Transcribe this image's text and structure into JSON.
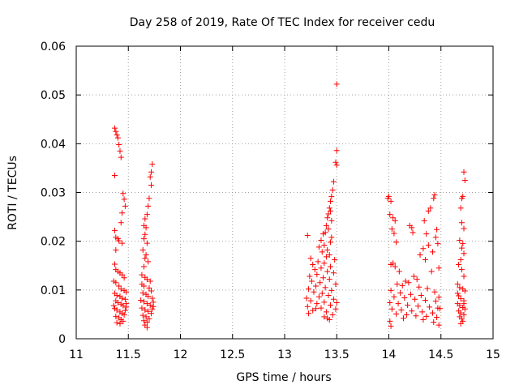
{
  "chart_data": {
    "type": "scatter",
    "title": "Day 258 of 2019, Rate Of TEC Index for receiver cedu",
    "xlabel": "GPS time / hours",
    "ylabel": "ROTI / TECUs",
    "xlim": [
      11,
      15
    ],
    "ylim": [
      0,
      0.06
    ],
    "x_ticks": [
      11,
      11.5,
      12,
      12.5,
      13,
      13.5,
      14,
      14.5,
      15
    ],
    "x_tick_labels": [
      "11",
      "11.5",
      "12",
      "12.5",
      "13",
      "13.5",
      "14",
      "14.5",
      "15"
    ],
    "y_ticks": [
      0,
      0.01,
      0.02,
      0.03,
      0.04,
      0.05,
      0.06
    ],
    "y_tick_labels": [
      "0",
      "0.01",
      "0.02",
      "0.03",
      "0.04",
      "0.05",
      "0.06"
    ],
    "grid": true,
    "marker": "+",
    "series": [
      {
        "name": "ROTI",
        "color": "#ff0000",
        "points": [
          [
            11.37,
            0.0432
          ],
          [
            11.38,
            0.0425
          ],
          [
            11.39,
            0.0418
          ],
          [
            11.4,
            0.0412
          ],
          [
            11.41,
            0.0398
          ],
          [
            11.42,
            0.0385
          ],
          [
            11.43,
            0.0372
          ],
          [
            11.37,
            0.0335
          ],
          [
            11.45,
            0.0298
          ],
          [
            11.46,
            0.0286
          ],
          [
            11.47,
            0.0272
          ],
          [
            11.44,
            0.0258
          ],
          [
            11.43,
            0.0238
          ],
          [
            11.37,
            0.0222
          ],
          [
            11.38,
            0.0208
          ],
          [
            11.4,
            0.0205
          ],
          [
            11.41,
            0.0201
          ],
          [
            11.44,
            0.0196
          ],
          [
            11.38,
            0.0182
          ],
          [
            11.37,
            0.0153
          ],
          [
            11.38,
            0.0142
          ],
          [
            11.4,
            0.0138
          ],
          [
            11.42,
            0.0135
          ],
          [
            11.44,
            0.0131
          ],
          [
            11.46,
            0.0125
          ],
          [
            11.36,
            0.0118
          ],
          [
            11.38,
            0.0115
          ],
          [
            11.41,
            0.0108
          ],
          [
            11.43,
            0.0102
          ],
          [
            11.46,
            0.0099
          ],
          [
            11.48,
            0.0096
          ],
          [
            11.37,
            0.0093
          ],
          [
            11.39,
            0.0089
          ],
          [
            11.42,
            0.0087
          ],
          [
            11.44,
            0.0083
          ],
          [
            11.47,
            0.0081
          ],
          [
            11.38,
            0.0078
          ],
          [
            11.4,
            0.0074
          ],
          [
            11.43,
            0.0071
          ],
          [
            11.45,
            0.0068
          ],
          [
            11.48,
            0.0065
          ],
          [
            11.37,
            0.0062
          ],
          [
            11.39,
            0.0059
          ],
          [
            11.42,
            0.0055
          ],
          [
            11.44,
            0.0052
          ],
          [
            11.46,
            0.0049
          ],
          [
            11.38,
            0.0046
          ],
          [
            11.41,
            0.0043
          ],
          [
            11.43,
            0.0039
          ],
          [
            11.45,
            0.0036
          ],
          [
            11.39,
            0.0033
          ],
          [
            11.42,
            0.0031
          ],
          [
            11.47,
            0.0058
          ],
          [
            11.48,
            0.0072
          ],
          [
            11.36,
            0.0068
          ],
          [
            11.73,
            0.0358
          ],
          [
            11.72,
            0.0342
          ],
          [
            11.71,
            0.0332
          ],
          [
            11.72,
            0.0315
          ],
          [
            11.7,
            0.0288
          ],
          [
            11.69,
            0.0272
          ],
          [
            11.68,
            0.0255
          ],
          [
            11.66,
            0.0246
          ],
          [
            11.65,
            0.0232
          ],
          [
            11.67,
            0.0228
          ],
          [
            11.66,
            0.0214
          ],
          [
            11.65,
            0.0205
          ],
          [
            11.68,
            0.0196
          ],
          [
            11.64,
            0.0182
          ],
          [
            11.67,
            0.0172
          ],
          [
            11.66,
            0.0165
          ],
          [
            11.69,
            0.0158
          ],
          [
            11.65,
            0.0148
          ],
          [
            11.63,
            0.0131
          ],
          [
            11.66,
            0.0126
          ],
          [
            11.68,
            0.0122
          ],
          [
            11.71,
            0.0118
          ],
          [
            11.63,
            0.0112
          ],
          [
            11.65,
            0.0108
          ],
          [
            11.7,
            0.0104
          ],
          [
            11.72,
            0.0098
          ],
          [
            11.64,
            0.0094
          ],
          [
            11.67,
            0.0091
          ],
          [
            11.69,
            0.0087
          ],
          [
            11.73,
            0.0083
          ],
          [
            11.62,
            0.0079
          ],
          [
            11.65,
            0.0076
          ],
          [
            11.68,
            0.0072
          ],
          [
            11.71,
            0.0069
          ],
          [
            11.74,
            0.0066
          ],
          [
            11.63,
            0.0063
          ],
          [
            11.66,
            0.0059
          ],
          [
            11.69,
            0.0056
          ],
          [
            11.72,
            0.0052
          ],
          [
            11.64,
            0.0048
          ],
          [
            11.67,
            0.0045
          ],
          [
            11.7,
            0.0041
          ],
          [
            11.65,
            0.0037
          ],
          [
            11.68,
            0.0034
          ],
          [
            11.66,
            0.0028
          ],
          [
            11.68,
            0.0023
          ],
          [
            11.73,
            0.0061
          ],
          [
            11.74,
            0.0075
          ],
          [
            13.5,
            0.0522
          ],
          [
            13.5,
            0.0386
          ],
          [
            13.49,
            0.0362
          ],
          [
            13.5,
            0.0356
          ],
          [
            13.47,
            0.0322
          ],
          [
            13.46,
            0.0305
          ],
          [
            13.45,
            0.0292
          ],
          [
            13.44,
            0.0282
          ],
          [
            13.43,
            0.0268
          ],
          [
            13.44,
            0.0262
          ],
          [
            13.42,
            0.0256
          ],
          [
            13.41,
            0.0248
          ],
          [
            13.45,
            0.0242
          ],
          [
            13.4,
            0.0232
          ],
          [
            13.42,
            0.0225
          ],
          [
            13.39,
            0.0218
          ],
          [
            13.37,
            0.0215
          ],
          [
            13.22,
            0.0212
          ],
          [
            13.45,
            0.0208
          ],
          [
            13.35,
            0.0202
          ],
          [
            13.44,
            0.0198
          ],
          [
            13.38,
            0.0192
          ],
          [
            13.33,
            0.0188
          ],
          [
            13.41,
            0.0182
          ],
          [
            13.36,
            0.0178
          ],
          [
            13.43,
            0.0172
          ],
          [
            13.4,
            0.0168
          ],
          [
            13.25,
            0.0165
          ],
          [
            13.48,
            0.0162
          ],
          [
            13.32,
            0.0158
          ],
          [
            13.38,
            0.0155
          ],
          [
            13.27,
            0.0152
          ],
          [
            13.44,
            0.0148
          ],
          [
            13.35,
            0.0145
          ],
          [
            13.29,
            0.0142
          ],
          [
            13.41,
            0.0138
          ],
          [
            13.47,
            0.0135
          ],
          [
            13.31,
            0.0132
          ],
          [
            13.24,
            0.0128
          ],
          [
            13.37,
            0.0125
          ],
          [
            13.43,
            0.0122
          ],
          [
            13.26,
            0.0118
          ],
          [
            13.34,
            0.0115
          ],
          [
            13.49,
            0.0112
          ],
          [
            13.3,
            0.0108
          ],
          [
            13.39,
            0.0105
          ],
          [
            13.23,
            0.0102
          ],
          [
            13.45,
            0.0099
          ],
          [
            13.28,
            0.0096
          ],
          [
            13.36,
            0.0093
          ],
          [
            13.42,
            0.0089
          ],
          [
            13.33,
            0.0086
          ],
          [
            13.21,
            0.0083
          ],
          [
            13.47,
            0.0081
          ],
          [
            13.25,
            0.0078
          ],
          [
            13.38,
            0.0075
          ],
          [
            13.31,
            0.0072
          ],
          [
            13.44,
            0.0069
          ],
          [
            13.22,
            0.0066
          ],
          [
            13.35,
            0.0063
          ],
          [
            13.49,
            0.0061
          ],
          [
            13.27,
            0.0058
          ],
          [
            13.4,
            0.0055
          ],
          [
            13.23,
            0.0052
          ],
          [
            13.46,
            0.0049
          ],
          [
            13.38,
            0.0045
          ],
          [
            13.41,
            0.0042
          ],
          [
            13.43,
            0.0039
          ],
          [
            13.3,
            0.0062
          ],
          [
            13.5,
            0.0074
          ],
          [
            14.0,
            0.0292
          ],
          [
            13.99,
            0.0288
          ],
          [
            14.02,
            0.0282
          ],
          [
            14.01,
            0.0255
          ],
          [
            14.04,
            0.0248
          ],
          [
            14.06,
            0.0242
          ],
          [
            14.03,
            0.0225
          ],
          [
            14.05,
            0.0216
          ],
          [
            14.07,
            0.0198
          ],
          [
            14.2,
            0.0232
          ],
          [
            14.22,
            0.0228
          ],
          [
            14.23,
            0.0218
          ],
          [
            14.34,
            0.0242
          ],
          [
            14.38,
            0.0262
          ],
          [
            14.4,
            0.0268
          ],
          [
            14.43,
            0.0288
          ],
          [
            14.44,
            0.0295
          ],
          [
            14.36,
            0.0215
          ],
          [
            14.33,
            0.0185
          ],
          [
            14.46,
            0.0224
          ],
          [
            14.45,
            0.0208
          ],
          [
            14.47,
            0.0195
          ],
          [
            14.38,
            0.0192
          ],
          [
            14.3,
            0.0172
          ],
          [
            14.42,
            0.0178
          ],
          [
            14.35,
            0.0162
          ],
          [
            14.48,
            0.0145
          ],
          [
            14.41,
            0.0138
          ],
          [
            14.02,
            0.0152
          ],
          [
            14.04,
            0.0155
          ],
          [
            14.06,
            0.0148
          ],
          [
            14.1,
            0.0138
          ],
          [
            14.24,
            0.0128
          ],
          [
            14.27,
            0.0122
          ],
          [
            14.16,
            0.0118
          ],
          [
            14.19,
            0.0115
          ],
          [
            14.08,
            0.0112
          ],
          [
            14.13,
            0.0109
          ],
          [
            14.29,
            0.0106
          ],
          [
            14.37,
            0.0103
          ],
          [
            14.02,
            0.0099
          ],
          [
            14.44,
            0.0096
          ],
          [
            14.11,
            0.0094
          ],
          [
            14.21,
            0.0091
          ],
          [
            14.31,
            0.0089
          ],
          [
            14.05,
            0.0086
          ],
          [
            14.15,
            0.0084
          ],
          [
            14.25,
            0.0081
          ],
          [
            14.35,
            0.0079
          ],
          [
            14.45,
            0.0077
          ],
          [
            14.01,
            0.0074
          ],
          [
            14.09,
            0.0072
          ],
          [
            14.18,
            0.0069
          ],
          [
            14.28,
            0.0067
          ],
          [
            14.39,
            0.0065
          ],
          [
            14.47,
            0.0063
          ],
          [
            14.03,
            0.0061
          ],
          [
            14.12,
            0.0059
          ],
          [
            14.22,
            0.0057
          ],
          [
            14.32,
            0.0055
          ],
          [
            14.42,
            0.0053
          ],
          [
            14.07,
            0.0051
          ],
          [
            14.17,
            0.0049
          ],
          [
            14.26,
            0.0047
          ],
          [
            14.36,
            0.0046
          ],
          [
            14.46,
            0.0044
          ],
          [
            14.14,
            0.0042
          ],
          [
            14.33,
            0.0039
          ],
          [
            14.01,
            0.0036
          ],
          [
            14.43,
            0.0034
          ],
          [
            14.02,
            0.0026
          ],
          [
            14.48,
            0.0028
          ],
          [
            14.49,
            0.0062
          ],
          [
            14.48,
            0.0085
          ],
          [
            14.72,
            0.0342
          ],
          [
            14.73,
            0.0325
          ],
          [
            14.71,
            0.0292
          ],
          [
            14.7,
            0.0288
          ],
          [
            14.69,
            0.0268
          ],
          [
            14.7,
            0.0238
          ],
          [
            14.72,
            0.0226
          ],
          [
            14.68,
            0.0202
          ],
          [
            14.71,
            0.0195
          ],
          [
            14.7,
            0.0186
          ],
          [
            14.72,
            0.0175
          ],
          [
            14.69,
            0.0162
          ],
          [
            14.67,
            0.0152
          ],
          [
            14.7,
            0.0142
          ],
          [
            14.72,
            0.0128
          ],
          [
            14.66,
            0.0112
          ],
          [
            14.68,
            0.0105
          ],
          [
            14.71,
            0.0102
          ],
          [
            14.73,
            0.0098
          ],
          [
            14.67,
            0.0088
          ],
          [
            14.69,
            0.0082
          ],
          [
            14.72,
            0.0078
          ],
          [
            14.66,
            0.0072
          ],
          [
            14.68,
            0.0068
          ],
          [
            14.71,
            0.0064
          ],
          [
            14.73,
            0.0061
          ],
          [
            14.67,
            0.0057
          ],
          [
            14.69,
            0.0053
          ],
          [
            14.72,
            0.0049
          ],
          [
            14.68,
            0.0045
          ],
          [
            14.7,
            0.0041
          ],
          [
            14.71,
            0.0036
          ],
          [
            14.69,
            0.0031
          ],
          [
            14.72,
            0.0072
          ],
          [
            14.66,
            0.0093
          ]
        ]
      }
    ]
  }
}
